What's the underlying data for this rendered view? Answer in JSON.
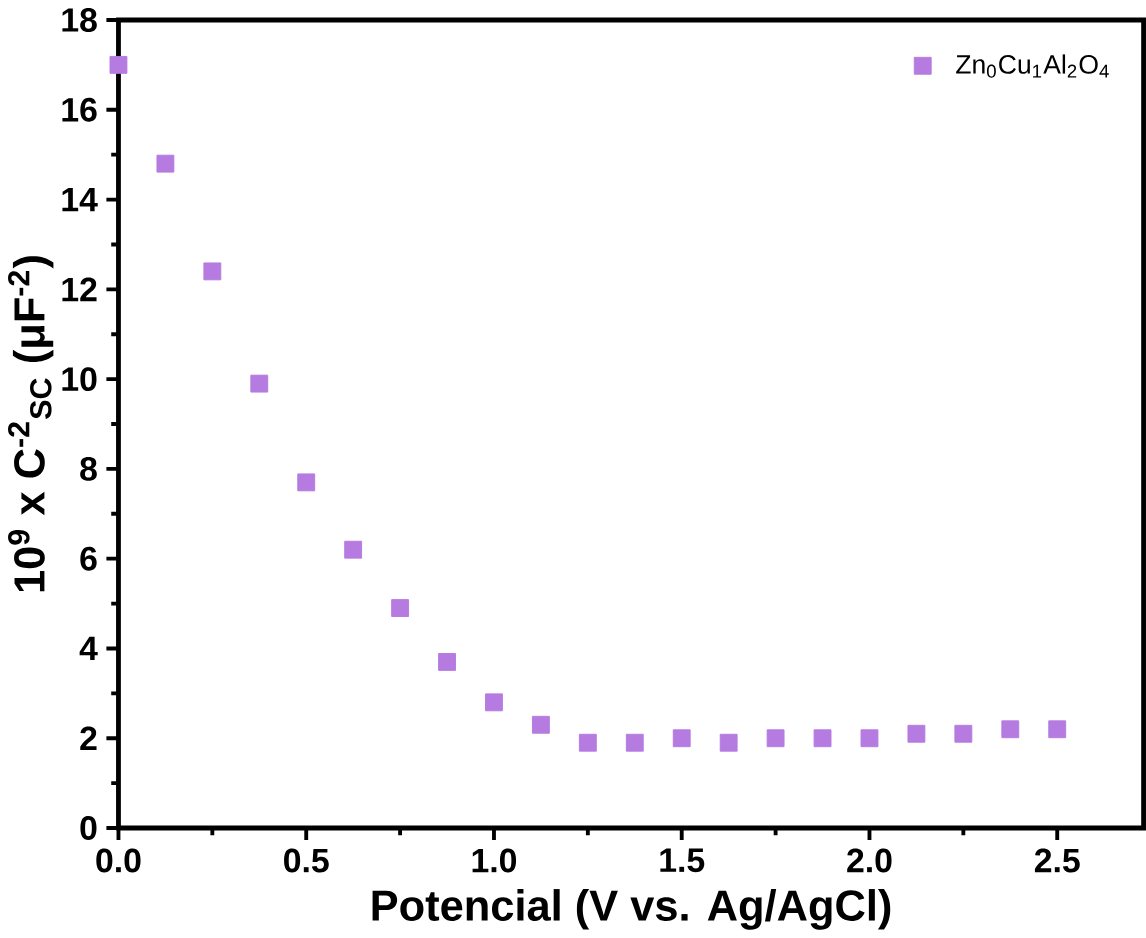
{
  "chart_data": {
    "type": "scatter",
    "xlabel": "Potencial (V vs. Ag/AgCl)",
    "ylabel": "10$^{9}$ x C$^{-2}$$_{SC}$ (μF$^{-2}$)",
    "x": [
      0,
      0.125,
      0.25,
      0.375,
      0.5,
      0.625,
      0.75,
      0.875,
      1.0,
      1.125,
      1.25,
      1.375,
      1.5,
      1.625,
      1.75,
      1.875,
      2.0,
      2.125,
      2.25,
      2.375,
      2.5
    ],
    "series": [
      {
        "name": "Zn$_{0}$Cu$_{1}$Al$_{2}$O$_{4}$",
        "color": "#b57be0",
        "values": [
          17.0,
          14.8,
          12.4,
          9.9,
          7.7,
          6.2,
          4.9,
          3.7,
          2.8,
          2.3,
          1.9,
          1.9,
          2.0,
          1.9,
          2.0,
          2.0,
          2.0,
          2.1,
          2.1,
          2.2,
          2.2
        ]
      }
    ],
    "marker": "square",
    "legend": "top right",
    "grid": false,
    "xlim": [
      0,
      2.73
    ],
    "ylim": [
      0,
      18
    ],
    "xticks": [
      {
        "value": 0,
        "label": "0.0"
      },
      0.5,
      {
        "value": 1,
        "label": "1.0"
      },
      1.5,
      {
        "value": 2,
        "label": "2.0"
      },
      2.5
    ],
    "yticks": [
      0,
      2,
      4,
      6,
      8,
      10,
      12,
      14,
      16,
      18
    ]
  }
}
